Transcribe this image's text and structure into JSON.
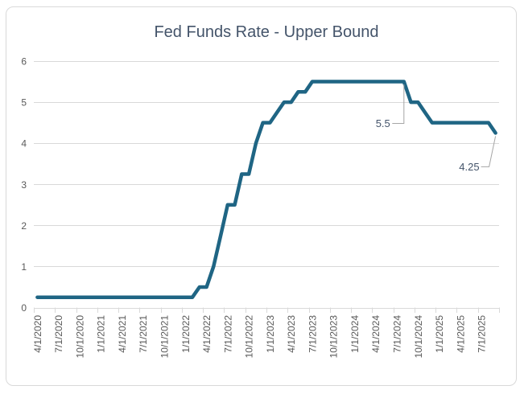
{
  "chart_data": {
    "type": "line",
    "title": "Fed Funds Rate - Upper Bound",
    "series_name": "Fed Funds Rate - Upper Bound",
    "x": [
      "4/1/2020",
      "5/1/2020",
      "6/1/2020",
      "7/1/2020",
      "8/1/2020",
      "9/1/2020",
      "10/1/2020",
      "11/1/2020",
      "12/1/2020",
      "1/1/2021",
      "2/1/2021",
      "3/1/2021",
      "4/1/2021",
      "5/1/2021",
      "6/1/2021",
      "7/1/2021",
      "8/1/2021",
      "9/1/2021",
      "10/1/2021",
      "11/1/2021",
      "12/1/2021",
      "1/1/2022",
      "2/1/2022",
      "3/1/2022",
      "4/1/2022",
      "5/1/2022",
      "6/1/2022",
      "7/1/2022",
      "8/1/2022",
      "9/1/2022",
      "10/1/2022",
      "11/1/2022",
      "12/1/2022",
      "1/1/2023",
      "2/1/2023",
      "3/1/2023",
      "4/1/2023",
      "5/1/2023",
      "6/1/2023",
      "7/1/2023",
      "8/1/2023",
      "9/1/2023",
      "10/1/2023",
      "11/1/2023",
      "12/1/2023",
      "1/1/2024",
      "2/1/2024",
      "3/1/2024",
      "4/1/2024",
      "5/1/2024",
      "6/1/2024",
      "7/1/2024",
      "8/1/2024",
      "9/1/2024",
      "10/1/2024",
      "11/1/2024",
      "12/1/2024",
      "1/1/2025",
      "2/1/2025",
      "3/1/2025",
      "4/1/2025",
      "5/1/2025",
      "6/1/2025",
      "7/1/2025",
      "8/1/2025",
      "9/1/2025"
    ],
    "values": [
      0.25,
      0.25,
      0.25,
      0.25,
      0.25,
      0.25,
      0.25,
      0.25,
      0.25,
      0.25,
      0.25,
      0.25,
      0.25,
      0.25,
      0.25,
      0.25,
      0.25,
      0.25,
      0.25,
      0.25,
      0.25,
      0.25,
      0.25,
      0.5,
      0.5,
      1.0,
      1.75,
      2.5,
      2.5,
      3.25,
      3.25,
      4.0,
      4.5,
      4.5,
      4.75,
      5.0,
      5.0,
      5.25,
      5.25,
      5.5,
      5.5,
      5.5,
      5.5,
      5.5,
      5.5,
      5.5,
      5.5,
      5.5,
      5.5,
      5.5,
      5.5,
      5.5,
      5.5,
      5.0,
      5.0,
      4.75,
      4.5,
      4.5,
      4.5,
      4.5,
      4.5,
      4.5,
      4.5,
      4.5,
      4.5,
      4.25
    ],
    "x_tick_labels": [
      "4/1/2020",
      "7/1/2020",
      "10/1/2020",
      "1/1/2021",
      "4/1/2021",
      "7/1/2021",
      "10/1/2021",
      "1/1/2022",
      "4/1/2022",
      "7/1/2022",
      "10/1/2022",
      "1/1/2023",
      "4/1/2023",
      "7/1/2023",
      "10/1/2023",
      "1/1/2024",
      "4/1/2024",
      "7/1/2024",
      "10/1/2024",
      "1/1/2025",
      "4/1/2025",
      "7/1/2025"
    ],
    "x_tick_every_n_points": 3,
    "y_ticks": [
      "0",
      "1",
      "2",
      "3",
      "4",
      "5",
      "6"
    ],
    "ylim": [
      0,
      6
    ],
    "grid": true,
    "legend": "none",
    "annotations": [
      {
        "text": "5.5",
        "point_index": 52,
        "point_value": 5.5
      },
      {
        "text": "4.25",
        "point_index": 65,
        "point_value": 4.25
      }
    ],
    "colors": {
      "line": "#1f6584",
      "title_text": "#44546a",
      "data_label_text": "#44546a",
      "axis_text": "#595959",
      "gridline": "#d9d9d9",
      "tick": "#d9d9d9",
      "border": "#d9d9d9",
      "leader_line": "#a6a6a6",
      "background": "#ffffff"
    }
  }
}
